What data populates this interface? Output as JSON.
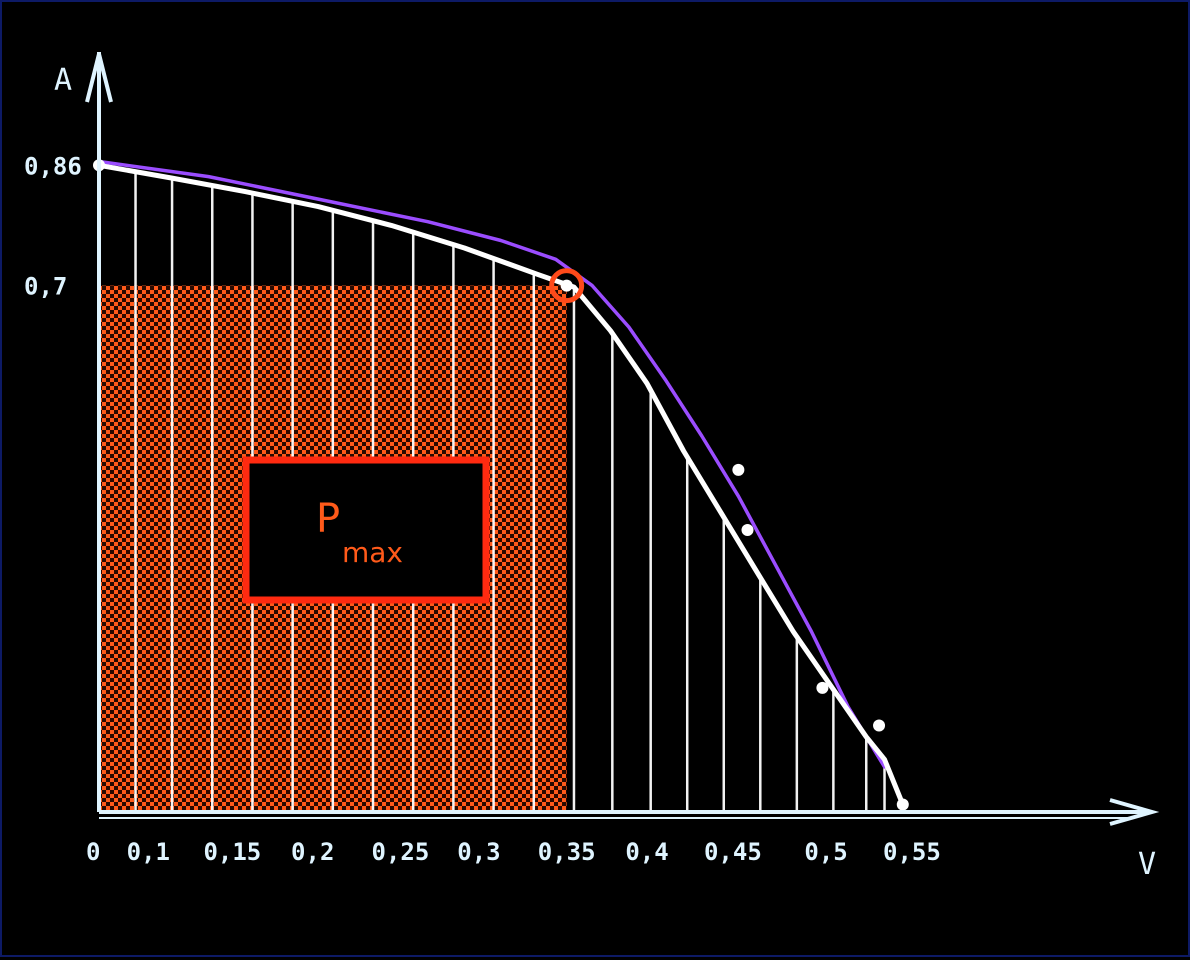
{
  "chart_data": {
    "type": "line",
    "xlabel": "V",
    "ylabel": "A",
    "x_tick_labels": [
      {
        "label": "0",
        "value": 0.0
      },
      {
        "label": "0,1",
        "value": 0.027
      },
      {
        "label": "0,15",
        "value": 0.073
      },
      {
        "label": "0,2",
        "value": 0.117
      },
      {
        "label": "0,25",
        "value": 0.165
      },
      {
        "label": "0,3",
        "value": 0.208
      },
      {
        "label": "0,35",
        "value": 0.256
      },
      {
        "label": "0,4",
        "value": 0.3
      },
      {
        "label": "0,45",
        "value": 0.347
      },
      {
        "label": "0,5",
        "value": 0.398
      },
      {
        "label": "0,55",
        "value": 0.445
      }
    ],
    "y_tick_labels": [
      {
        "label": "0,86",
        "value": 0.86
      },
      {
        "label": "0,7",
        "value": 0.7
      }
    ],
    "xlim": [
      0,
      0.56
    ],
    "ylim": [
      0,
      1.0
    ],
    "grid_x": [
      0.02,
      0.04,
      0.062,
      0.084,
      0.106,
      0.128,
      0.15,
      0.172,
      0.194,
      0.216,
      0.238,
      0.26,
      0.281,
      0.302,
      0.322,
      0.342,
      0.362,
      0.382,
      0.402,
      0.42,
      0.43
    ],
    "series": [
      {
        "color": "#ffffff",
        "x": [
          0.0,
          0.04,
          0.08,
          0.12,
          0.16,
          0.2,
          0.24,
          0.26,
          0.28,
          0.3,
          0.32,
          0.34,
          0.36,
          0.38,
          0.4,
          0.42,
          0.43,
          0.44
        ],
        "y": [
          0.86,
          0.843,
          0.825,
          0.805,
          0.78,
          0.75,
          0.715,
          0.698,
          0.64,
          0.57,
          0.48,
          0.4,
          0.32,
          0.24,
          0.17,
          0.1,
          0.07,
          0.01
        ]
      },
      {
        "color": "#9b4dff",
        "x": [
          0.0,
          0.06,
          0.12,
          0.18,
          0.22,
          0.25,
          0.27,
          0.29,
          0.31,
          0.33,
          0.35,
          0.37,
          0.39,
          0.41,
          0.43
        ],
        "y": [
          0.865,
          0.845,
          0.815,
          0.785,
          0.76,
          0.735,
          0.7,
          0.645,
          0.575,
          0.5,
          0.42,
          0.33,
          0.24,
          0.14,
          0.06
        ]
      }
    ],
    "points": [
      {
        "x": 0.0,
        "y": 0.86
      },
      {
        "x": 0.256,
        "y": 0.7
      },
      {
        "x": 0.35,
        "y": 0.455
      },
      {
        "x": 0.355,
        "y": 0.375
      },
      {
        "x": 0.396,
        "y": 0.165
      },
      {
        "x": 0.427,
        "y": 0.115
      },
      {
        "x": 0.44,
        "y": 0.01
      }
    ],
    "max_power_point": {
      "x": 0.256,
      "y": 0.7
    },
    "annotation": {
      "main": "P",
      "sub": "max"
    },
    "colors": {
      "background": "#000000",
      "axis": "#dff4ff",
      "area": "#ff5a1a",
      "grid": "#ffffff"
    }
  }
}
